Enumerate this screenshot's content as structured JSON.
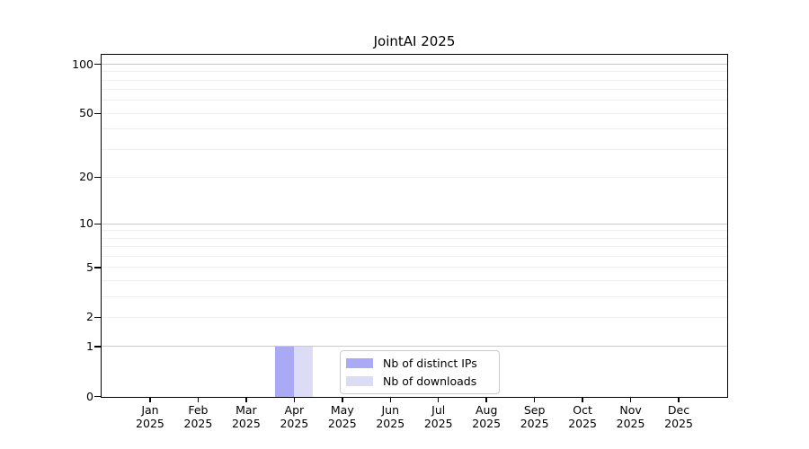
{
  "chart_data": {
    "type": "bar",
    "title": "JointAI 2025",
    "categories": [
      "Jan",
      "Feb",
      "Mar",
      "Apr",
      "May",
      "Jun",
      "Jul",
      "Aug",
      "Sep",
      "Oct",
      "Nov",
      "Dec"
    ],
    "category_sublabel": "2025",
    "series": [
      {
        "name": "Nb of distinct IPs",
        "color": "#a9a9f5",
        "values": [
          0,
          0,
          0,
          1,
          0,
          0,
          0,
          0,
          0,
          0,
          0,
          0
        ]
      },
      {
        "name": "Nb of downloads",
        "color": "#dcdcf7",
        "values": [
          0,
          0,
          0,
          1,
          0,
          0,
          0,
          0,
          0,
          0,
          0,
          0
        ]
      }
    ],
    "yscale": "log1p",
    "ylim": [
      0,
      100
    ],
    "ytick_values": [
      100,
      50,
      20,
      10,
      5,
      2,
      1,
      0
    ],
    "ytick_labels": [
      "100",
      "50",
      "20",
      "10",
      "5",
      "2",
      "1",
      "0"
    ],
    "major_gridline_values": [
      1,
      10,
      100
    ],
    "minor_gridline_values": [
      2,
      3,
      4,
      5,
      6,
      7,
      8,
      9,
      20,
      30,
      40,
      50,
      60,
      70,
      80,
      90
    ],
    "grid": true,
    "legend_position": "lower center"
  },
  "colors": {
    "background": "#ffffff",
    "axis": "#000000",
    "major_grid": "#c9c9c9",
    "minor_grid": "#efefef",
    "bar_distinct_ips": "#a9a9f5",
    "bar_downloads": "#dcdcf7"
  }
}
